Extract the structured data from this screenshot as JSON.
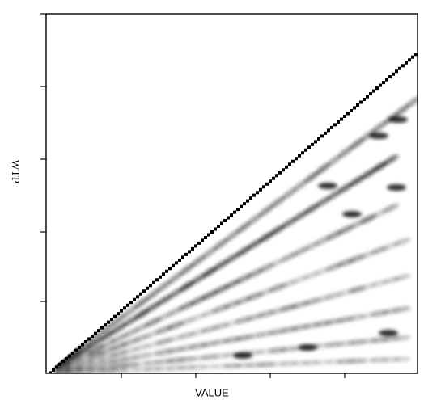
{
  "chart_data": {
    "type": "heatmap",
    "x_label": "VALUE",
    "y_label": "WTP"
  }
}
